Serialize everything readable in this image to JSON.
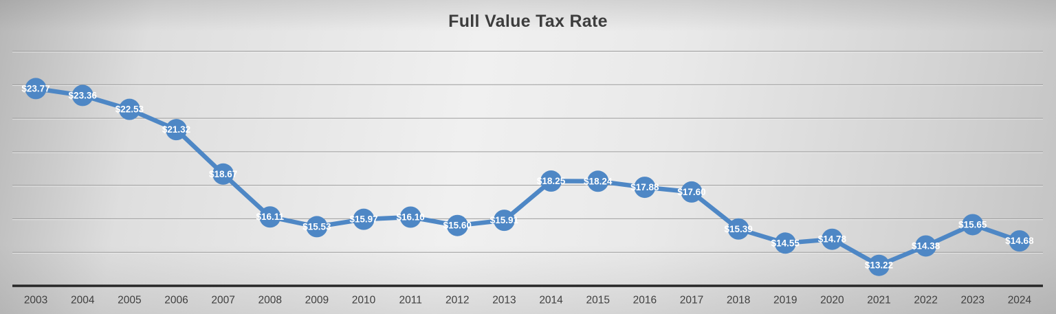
{
  "chart_data": {
    "type": "line",
    "title": "Full Value Tax Rate",
    "categories": [
      "2003",
      "2004",
      "2005",
      "2006",
      "2007",
      "2008",
      "2009",
      "2010",
      "2011",
      "2012",
      "2013",
      "2014",
      "2015",
      "2016",
      "2017",
      "2018",
      "2019",
      "2020",
      "2021",
      "2022",
      "2023",
      "2024"
    ],
    "values": [
      23.77,
      23.36,
      22.53,
      21.32,
      18.67,
      16.11,
      15.53,
      15.97,
      16.1,
      15.6,
      15.91,
      18.25,
      18.24,
      17.88,
      17.6,
      15.39,
      14.55,
      14.78,
      13.22,
      14.38,
      15.65,
      14.68
    ],
    "labels": [
      "$23.77",
      "$23.36",
      "$22.53",
      "$21.32",
      "$18.67",
      "$16.11",
      "$15.53",
      "$15.97",
      "$16.10",
      "$15.60",
      "$15.91",
      "$18.25",
      "$18.24",
      "$17.88",
      "$17.60",
      "$15.39",
      "$14.55",
      "$14.78",
      "$13.22",
      "$14.38",
      "$15.65",
      "$14.68"
    ],
    "ylim": [
      12,
      26.8
    ],
    "gridline_values": [
      14,
      16,
      18,
      20,
      22,
      24,
      26
    ],
    "grid": true,
    "legend": "none",
    "markers": true,
    "data_labels_position": "center",
    "line_color": "#4e87c5",
    "label_color": "#ffffff"
  }
}
